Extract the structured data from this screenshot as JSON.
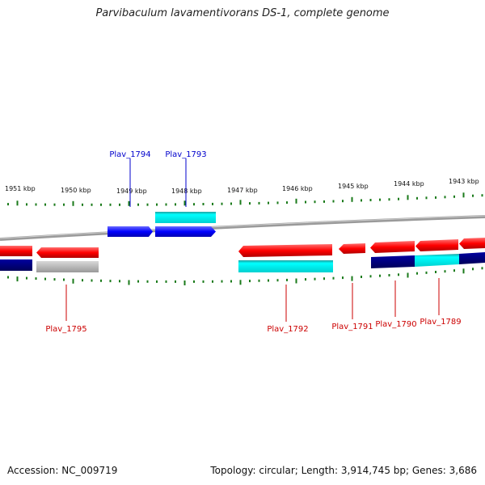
{
  "title": "Parvibaculum lavamentivorans DS-1, complete genome",
  "accession": "Accession: NC_009719",
  "summary": "Topology: circular; Length: 3,914,745 bp; Genes: 3,686",
  "colors": {
    "forward_gene": "#0000ff",
    "reverse_gene": "#ff0000",
    "forward_label": "#0000cc",
    "reverse_label": "#cc0000",
    "cyan_feature": "#00e5e5",
    "navy_feature": "#000080",
    "gray_feature": "#b0b0b0",
    "tick": "#1a7a1a",
    "backbone": "#808080"
  },
  "kbp_labels": [
    "1951 kbp",
    "1950 kbp",
    "1949 kbp",
    "1948 kbp",
    "1947 kbp",
    "1946 kbp",
    "1945 kbp",
    "1944 kbp",
    "1943 kbp"
  ],
  "gene_labels_forward": [
    "Plav_1794",
    "Plav_1793"
  ],
  "gene_labels_reverse": [
    "Plav_1795",
    "Plav_1792",
    "Plav_1791",
    "Plav_1790",
    "Plav_1789"
  ]
}
